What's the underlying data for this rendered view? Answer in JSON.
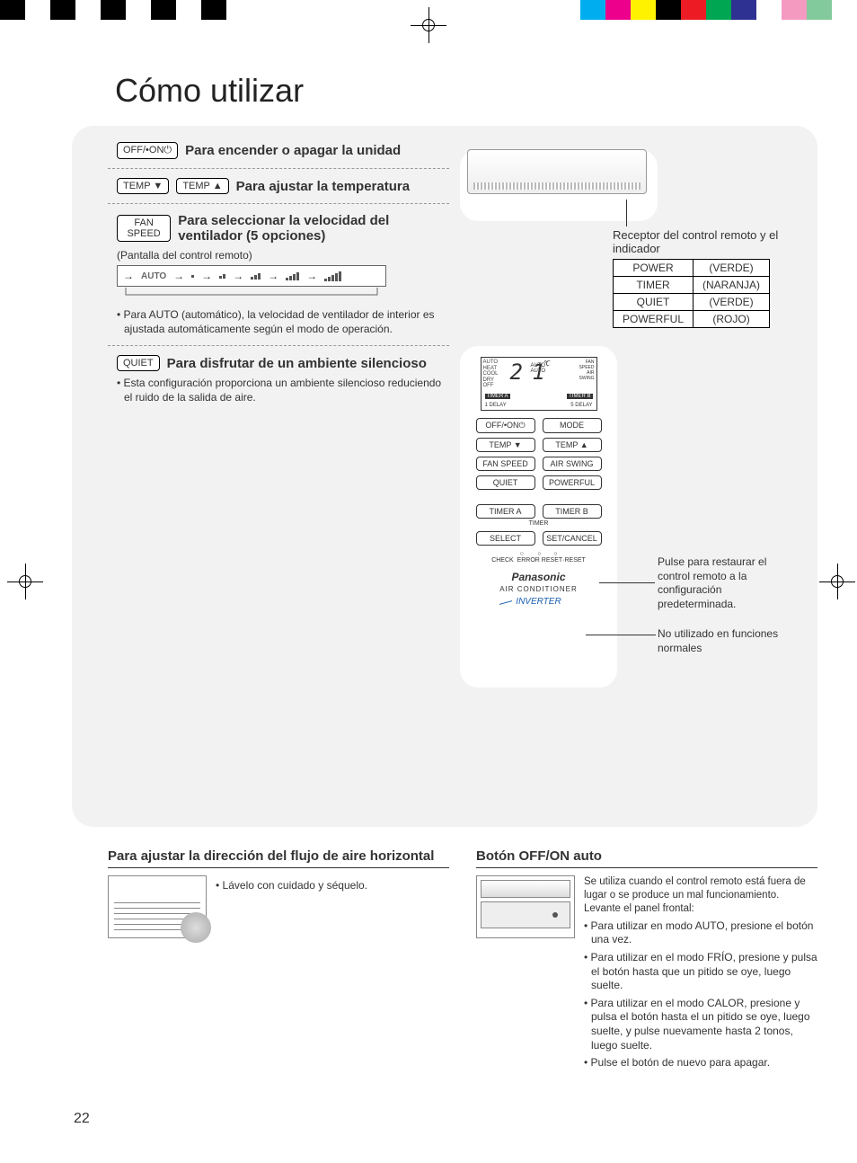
{
  "color_bars": {
    "left": [
      "#000000",
      "#ffffff",
      "#000000",
      "#ffffff",
      "#000000",
      "#ffffff",
      "#000000",
      "#ffffff",
      "#000000"
    ],
    "right": [
      "#00aeef",
      "#ec008c",
      "#fff200",
      "#000000",
      "#ed1c24",
      "#00a651",
      "#2e3192",
      "#ffffff",
      "#f49ac1",
      "#82ca9c",
      "#ffffff"
    ]
  },
  "title": "Cómo utilizar",
  "page_number": "22",
  "left": {
    "s1": {
      "button": "OFF/•ON⏻",
      "heading": "Para encender o apagar la unidad"
    },
    "s2": {
      "button_down": "TEMP ▼",
      "button_up": "TEMP ▲",
      "heading": "Para ajustar la temperatura"
    },
    "s3": {
      "button": "FAN SPEED",
      "heading": "Para seleccionar la velocidad del ventilador (5 opciones)",
      "note": "(Pantalla del control remoto)",
      "auto_label": "AUTO",
      "bullet": "Para AUTO (automático), la velocidad de ventilador de interior es ajustada automáticamente según el modo de operación."
    },
    "s4": {
      "button": "QUIET",
      "heading": "Para disfrutar de un ambiente silencioso",
      "bullet": "Esta configuración proporciona un ambiente silencioso reduciendo el ruido de la salida de aire."
    }
  },
  "right": {
    "receiver_caption": "Receptor del control remoto y el indicador",
    "indicators": [
      [
        "POWER",
        "(VERDE)"
      ],
      [
        "TIMER",
        "(NARANJA)"
      ],
      [
        "QUIET",
        "(VERDE)"
      ],
      [
        "POWERFUL",
        "(ROJO)"
      ]
    ],
    "lcd": {
      "modes": "AUTO\nHEAT\nCOOL\nDRY\nOFF",
      "temp": "2 1",
      "c": "°C",
      "right_labels": "FAN\nSPEED\nAIR\nSWING",
      "auto1": "AUTO",
      "auto2": "AUTO",
      "delay1": "1 DELAY",
      "delay2": "5 DELAY",
      "on": "ON",
      "timer_a": "TIMER A",
      "timer_b": "TIMER B"
    },
    "buttons": {
      "offon": "OFF/•ON⏻",
      "mode": "MODE",
      "tempdn": "TEMP ▼",
      "tempup": "TEMP ▲",
      "fanspeed": "FAN SPEED",
      "airswing": "AIR SWING",
      "quiet": "QUIET",
      "powerful": "POWERFUL",
      "timera": "TIMER A",
      "timerb": "TIMER B",
      "timer_lbl": "TIMER",
      "select": "SELECT",
      "setcancel": "SET/CANCEL"
    },
    "pinholes": "○        ○       ○\nCHECK  ERROR RESET·RESET",
    "brand": "Panasonic",
    "subbrand": "AIR CONDITIONER",
    "inverter": "INVERTER",
    "callout1": "Pulse para restaurar el control remoto a la configuración predeterminada.",
    "callout2": "No utilizado en funciones normales"
  },
  "bottom": {
    "left": {
      "heading": "Para ajustar la dirección del flujo de aire horizontal",
      "bullet": "Lávelo con cuidado y séquelo."
    },
    "right": {
      "heading": "Botón OFF/ON auto",
      "intro": "Se utiliza cuando el control remoto está fuera de lugar o se produce un mal funcionamiento. Levante el panel frontal:",
      "bullets": [
        "Para utilizar en modo AUTO, presione el botón una vez.",
        "Para utilizar en el modo FRÍO, presione y pulsa el botón hasta que un pitido se oye, luego suelte.",
        "Para utilizar en el modo CALOR, presione y pulsa el botón hasta el un pitido se oye, luego suelte, y pulse nuevamente hasta 2 tonos, luego suelte.",
        "Pulse el botón de nuevo para apagar."
      ]
    }
  }
}
